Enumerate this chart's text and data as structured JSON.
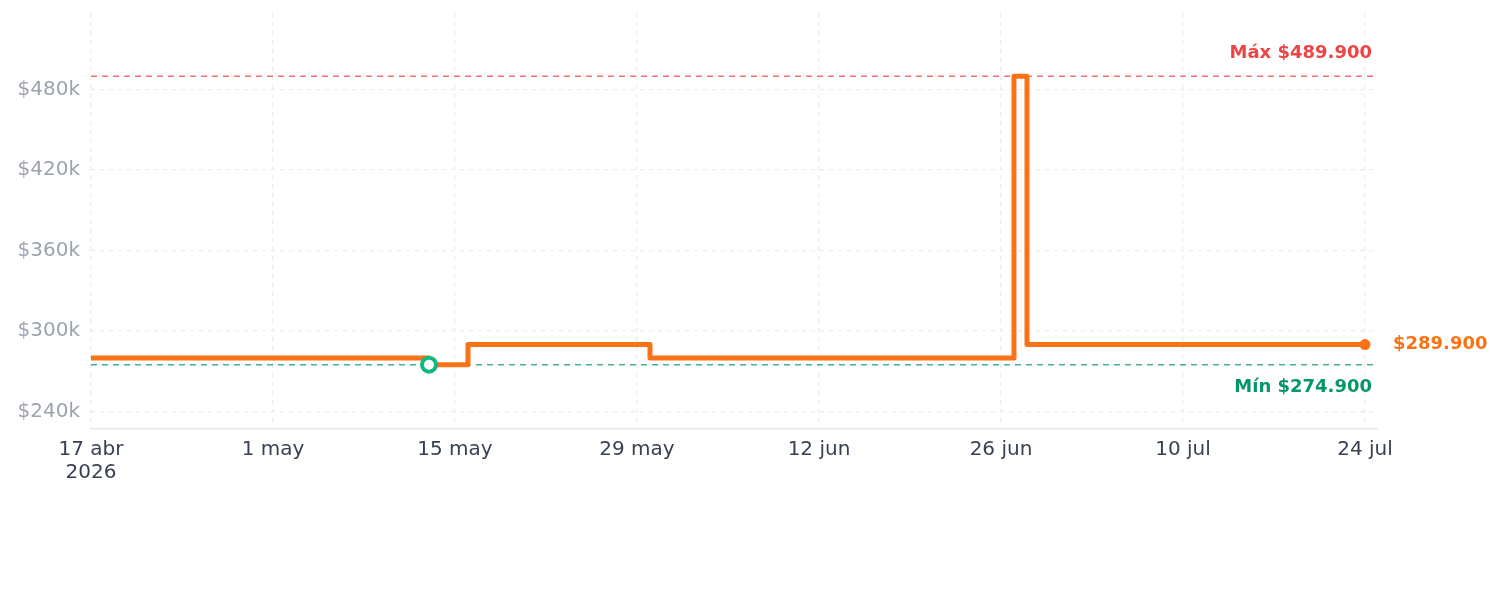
{
  "chart_data": {
    "type": "step",
    "xlim": [
      "2026-04-17",
      "2026-07-25"
    ],
    "xticks": [
      {
        "value": "2026-04-17",
        "label": "17 abr\n2026"
      },
      {
        "value": "2026-05-01",
        "label": "1 may"
      },
      {
        "value": "2026-05-15",
        "label": "15 may"
      },
      {
        "value": "2026-05-29",
        "label": "29 may"
      },
      {
        "value": "2026-06-12",
        "label": "12 jun"
      },
      {
        "value": "2026-06-26",
        "label": "26 jun"
      },
      {
        "value": "2026-07-10",
        "label": "10 jul"
      },
      {
        "value": "2026-07-24",
        "label": "24 jul"
      }
    ],
    "ylim": [
      227,
      537
    ],
    "yticks": [
      {
        "value": 240,
        "label": "$240k"
      },
      {
        "value": 300,
        "label": "$300k"
      },
      {
        "value": 360,
        "label": "$360k"
      },
      {
        "value": 420,
        "label": "$420k"
      },
      {
        "value": 480,
        "label": "$480k"
      }
    ],
    "grid": true,
    "ref_lines": [
      {
        "axis": "y",
        "value": 489.9,
        "label": "Máx $489.900",
        "color": "#ef4444",
        "line_style": "dashed"
      },
      {
        "axis": "y",
        "value": 274.9,
        "label": "Mín $274.900",
        "color": "#059669",
        "line_style": "dashed"
      }
    ],
    "series": [
      {
        "color": "#f97316",
        "x": [
          "2026-04-17",
          "2026-05-13",
          "2026-05-16",
          "2026-05-30",
          "2026-06-27",
          "2026-06-28",
          "2026-07-24"
        ],
        "values": [
          279.9,
          274.9,
          289.9,
          279.9,
          489.9,
          289.9,
          289.9
        ]
      },
      {
        "type": "scatter",
        "color": "#10b981",
        "marker": "circle",
        "x": [
          "2026-05-13"
        ],
        "values": [
          274.9
        ]
      },
      {
        "type": "scatter",
        "color": "#f97316",
        "marker": "circle",
        "x": [
          "2026-07-24"
        ],
        "values": [
          289.9
        ],
        "value_labels": [
          "$289.900"
        ]
      }
    ]
  }
}
